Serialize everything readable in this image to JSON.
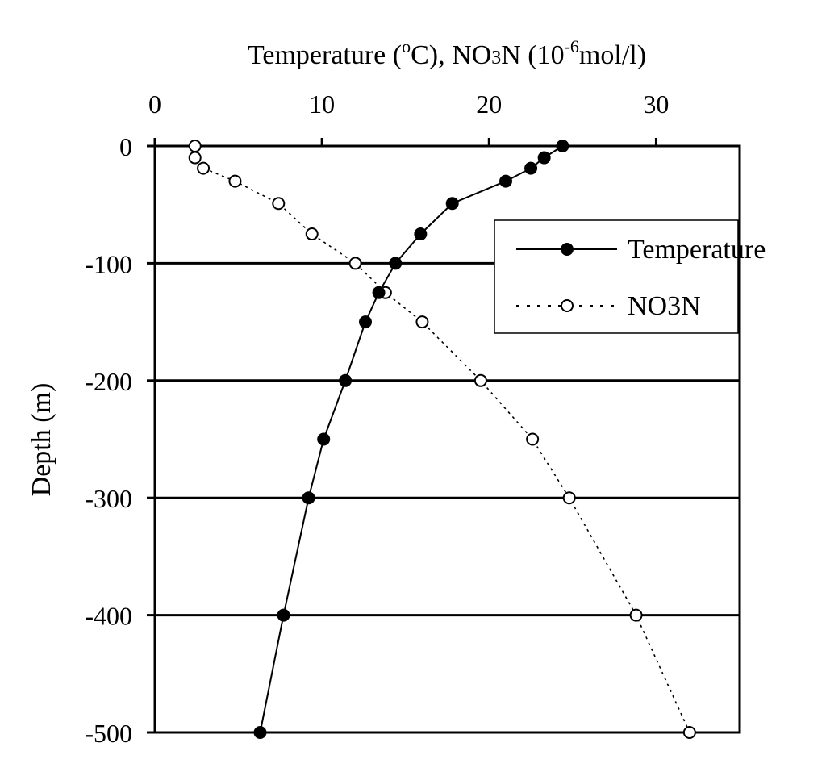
{
  "chart_data": {
    "type": "line",
    "title": "",
    "xlabel": "Temperature (°C),  NO3N (10-6mol/l)",
    "xlabel_parts": {
      "pre": "Temperature (",
      "sup1": "o",
      "mid": "C),  NO",
      "sub": "3",
      "post": "N (10",
      "sup2": "-6",
      "end": "mol/l)"
    },
    "ylabel": "Depth (m)",
    "xlim": [
      0,
      35
    ],
    "ylim": [
      -500,
      0
    ],
    "xticks": [
      0,
      10,
      20,
      30
    ],
    "xtick_labels": [
      "0",
      "10",
      "20",
      "30"
    ],
    "yticks": [
      0,
      -100,
      -200,
      -300,
      -400,
      -500
    ],
    "ytick_labels": [
      "0",
      "-100",
      "-200",
      "-300",
      "-400",
      "-500"
    ],
    "x_axis_position": "top",
    "grid": "horizontal",
    "legend_position": "right",
    "series": [
      {
        "name": "Temperature",
        "style": "solid",
        "marker": "filled-circle",
        "color": "#000000",
        "points": [
          {
            "x": 24.4,
            "y": 0
          },
          {
            "x": 23.3,
            "y": -10
          },
          {
            "x": 22.5,
            "y": -19
          },
          {
            "x": 21.0,
            "y": -30
          },
          {
            "x": 17.8,
            "y": -49
          },
          {
            "x": 15.9,
            "y": -75
          },
          {
            "x": 14.4,
            "y": -100
          },
          {
            "x": 13.4,
            "y": -125
          },
          {
            "x": 12.6,
            "y": -150
          },
          {
            "x": 11.4,
            "y": -200
          },
          {
            "x": 10.1,
            "y": -250
          },
          {
            "x": 9.2,
            "y": -300
          },
          {
            "x": 7.7,
            "y": -400
          },
          {
            "x": 6.3,
            "y": -500
          }
        ]
      },
      {
        "name": "NO3N",
        "style": "dotted",
        "marker": "open-circle",
        "color": "#000000",
        "points": [
          {
            "x": 2.4,
            "y": 0
          },
          {
            "x": 2.4,
            "y": -10
          },
          {
            "x": 2.9,
            "y": -19
          },
          {
            "x": 4.8,
            "y": -30
          },
          {
            "x": 7.4,
            "y": -49
          },
          {
            "x": 9.4,
            "y": -75
          },
          {
            "x": 12.0,
            "y": -100
          },
          {
            "x": 13.8,
            "y": -125
          },
          {
            "x": 16.0,
            "y": -150
          },
          {
            "x": 19.5,
            "y": -200
          },
          {
            "x": 22.6,
            "y": -250
          },
          {
            "x": 24.8,
            "y": -300
          },
          {
            "x": 28.8,
            "y": -400
          },
          {
            "x": 32.0,
            "y": -500
          }
        ]
      }
    ]
  }
}
